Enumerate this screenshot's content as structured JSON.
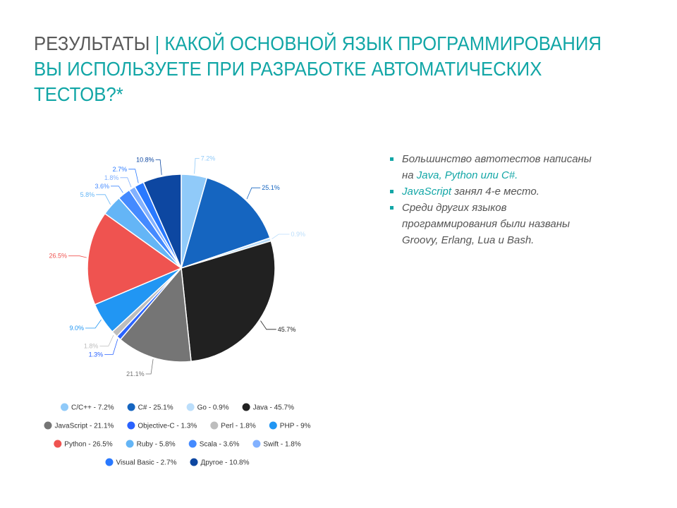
{
  "slide": {
    "title_lead": "Результаты",
    "title_sep": " | ",
    "title_rest": "Какой основной язык программирования вы используете при разработке автоматических тестов?*"
  },
  "bullets": [
    [
      {
        "t": "Большинство автотестов написаны на ",
        "hl": false
      },
      {
        "t": "Java, Python или C#.",
        "hl": true
      }
    ],
    [
      {
        "t": "JavaScript",
        "hl": true
      },
      {
        "t": " занял 4-е место.",
        "hl": false
      }
    ],
    [
      {
        "t": "Среди других языков программирования были названы Groovy, Erlang, Lua и Bash.",
        "hl": false
      }
    ]
  ],
  "chart_data": {
    "type": "pie",
    "unit": "%",
    "slices": [
      {
        "name": "C/C++",
        "value": 7.2,
        "label": "7.2%",
        "legend": "C/C++ - 7.2%",
        "color": "#90caf9"
      },
      {
        "name": "C#",
        "value": 25.1,
        "label": "25.1%",
        "legend": "C# - 25.1%",
        "color": "#1565c0"
      },
      {
        "name": "Go",
        "value": 0.9,
        "label": "0.9%",
        "legend": "Go - 0.9%",
        "color": "#bbdefb"
      },
      {
        "name": "Java",
        "value": 45.7,
        "label": "45.7%",
        "legend": "Java - 45.7%",
        "color": "#212121"
      },
      {
        "name": "JavaScript",
        "value": 21.1,
        "label": "21.1%",
        "legend": "JavaScript - 21.1%",
        "color": "#757575"
      },
      {
        "name": "Objective-C",
        "value": 1.3,
        "label": "1.3%",
        "legend": "Objective-C - 1.3%",
        "color": "#2962ff"
      },
      {
        "name": "Perl",
        "value": 1.8,
        "label": "1.8%",
        "legend": "Perl - 1.8%",
        "color": "#bdbdbd"
      },
      {
        "name": "PHP",
        "value": 9.0,
        "label": "9.0%",
        "legend": "PHP - 9%",
        "color": "#2196f3"
      },
      {
        "name": "Python",
        "value": 26.5,
        "label": "26.5%",
        "legend": "Python - 26.5%",
        "color": "#ef5350"
      },
      {
        "name": "Ruby",
        "value": 5.8,
        "label": "5.8%",
        "legend": "Ruby - 5.8%",
        "color": "#64b5f6"
      },
      {
        "name": "Scala",
        "value": 3.6,
        "label": "3.6%",
        "legend": "Scala - 3.6%",
        "color": "#448aff"
      },
      {
        "name": "Swift",
        "value": 1.8,
        "label": "1.8%",
        "legend": "Swift - 1.8%",
        "color": "#82b1ff"
      },
      {
        "name": "Visual Basic",
        "value": 2.7,
        "label": "2.7%",
        "legend": "Visual Basic - 2.7%",
        "color": "#2979ff"
      },
      {
        "name": "Другое",
        "value": 10.8,
        "label": "10.8%",
        "legend": "Другое - 10.8%",
        "color": "#0d47a1"
      }
    ],
    "legend_position": "bottom"
  }
}
